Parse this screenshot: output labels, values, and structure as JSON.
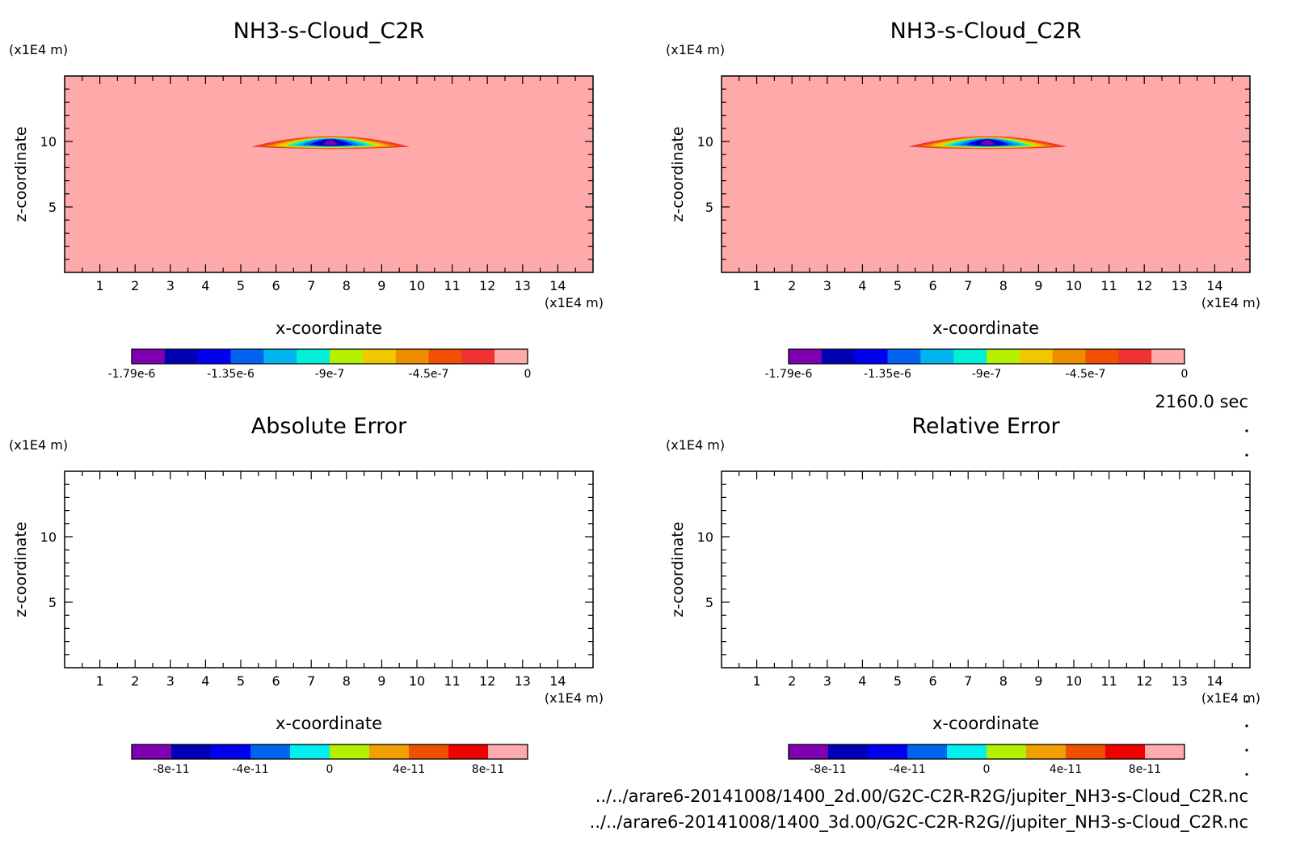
{
  "footer": {
    "time_label": "2160.0 sec",
    "file1": "../../arare6-20141008/1400_2d.00/G2C-C2R-R2G/jupiter_NH3-s-Cloud_C2R.nc",
    "file2": "../../arare6-20141008/1400_3d.00/G2C-C2R-R2G//jupiter_NH3-s-Cloud_C2R.nc"
  },
  "chart_data": [
    {
      "type": "heatmap",
      "title": "NH3-s-Cloud_C2R",
      "xlabel": "x-coordinate",
      "ylabel": "z-coordinate",
      "x_unit": "(x1E4 m)",
      "y_unit": "(x1E4 m)",
      "xlim": [
        0,
        15
      ],
      "ylim": [
        0,
        15
      ],
      "xticks": [
        "1",
        "2",
        "3",
        "4",
        "5",
        "6",
        "7",
        "8",
        "9",
        "10",
        "11",
        "12",
        "13",
        "14"
      ],
      "yticks": [
        "5",
        "10"
      ],
      "background_value": 0,
      "feature": {
        "x_range": [
          5.3,
          9.8
        ],
        "z_range": [
          9.6,
          10.4
        ],
        "center_x": 7.7,
        "min_value": -1.79e-06
      },
      "colorbar": {
        "colors": [
          "#7f00b0",
          "#0000b4",
          "#0000f0",
          "#0064f0",
          "#00b4f0",
          "#00f0d8",
          "#b4f000",
          "#f0c800",
          "#f08c00",
          "#f05000",
          "#f03232",
          "#ffaaaa"
        ],
        "labels": [
          "-1.79e-6",
          "-1.35e-6",
          "-9e-7",
          "-4.5e-7",
          "0"
        ]
      }
    },
    {
      "type": "heatmap",
      "title": "NH3-s-Cloud_C2R",
      "xlabel": "x-coordinate",
      "ylabel": "z-coordinate",
      "x_unit": "(x1E4 m)",
      "y_unit": "(x1E4 m)",
      "xlim": [
        0,
        15
      ],
      "ylim": [
        0,
        15
      ],
      "xticks": [
        "1",
        "2",
        "3",
        "4",
        "5",
        "6",
        "7",
        "8",
        "9",
        "10",
        "11",
        "12",
        "13",
        "14"
      ],
      "yticks": [
        "5",
        "10"
      ],
      "background_value": 0,
      "feature": {
        "x_range": [
          5.3,
          9.8
        ],
        "z_range": [
          9.6,
          10.4
        ],
        "center_x": 7.7,
        "min_value": -1.79e-06
      },
      "colorbar": {
        "colors": [
          "#7f00b0",
          "#0000b4",
          "#0000f0",
          "#0064f0",
          "#00b4f0",
          "#00f0d8",
          "#b4f000",
          "#f0c800",
          "#f08c00",
          "#f05000",
          "#f03232",
          "#ffaaaa"
        ],
        "labels": [
          "-1.79e-6",
          "-1.35e-6",
          "-9e-7",
          "-4.5e-7",
          "0"
        ]
      }
    },
    {
      "type": "heatmap",
      "title": "Absolute Error",
      "xlabel": "x-coordinate",
      "ylabel": "z-coordinate",
      "x_unit": "(x1E4 m)",
      "y_unit": "(x1E4 m)",
      "xlim": [
        0,
        15
      ],
      "ylim": [
        0,
        15
      ],
      "xticks": [
        "1",
        "2",
        "3",
        "4",
        "5",
        "6",
        "7",
        "8",
        "9",
        "10",
        "11",
        "12",
        "13",
        "14"
      ],
      "yticks": [
        "5",
        "10"
      ],
      "colorbar": {
        "colors": [
          "#7f00b0",
          "#0000b4",
          "#0000f0",
          "#0064f0",
          "#00f0f0",
          "#b4f000",
          "#f0a000",
          "#f05000",
          "#f00000",
          "#ffaaaa"
        ],
        "labels": [
          "-8e-11",
          "-4e-11",
          "0",
          "4e-11",
          "8e-11"
        ]
      }
    },
    {
      "type": "heatmap",
      "title": "Relative Error",
      "xlabel": "x-coordinate",
      "ylabel": "z-coordinate",
      "x_unit": "(x1E4 m)",
      "y_unit": "(x1E4 m)",
      "xlim": [
        0,
        15
      ],
      "ylim": [
        0,
        15
      ],
      "xticks": [
        "1",
        "2",
        "3",
        "4",
        "5",
        "6",
        "7",
        "8",
        "9",
        "10",
        "11",
        "12",
        "13",
        "14"
      ],
      "yticks": [
        "5",
        "10"
      ],
      "colorbar": {
        "colors": [
          "#7f00b0",
          "#0000b4",
          "#0000f0",
          "#0064f0",
          "#00f0f0",
          "#b4f000",
          "#f0a000",
          "#f05000",
          "#f00000",
          "#ffaaaa"
        ],
        "labels": [
          "-8e-11",
          "-4e-11",
          "0",
          "4e-11",
          "8e-11"
        ]
      }
    }
  ]
}
